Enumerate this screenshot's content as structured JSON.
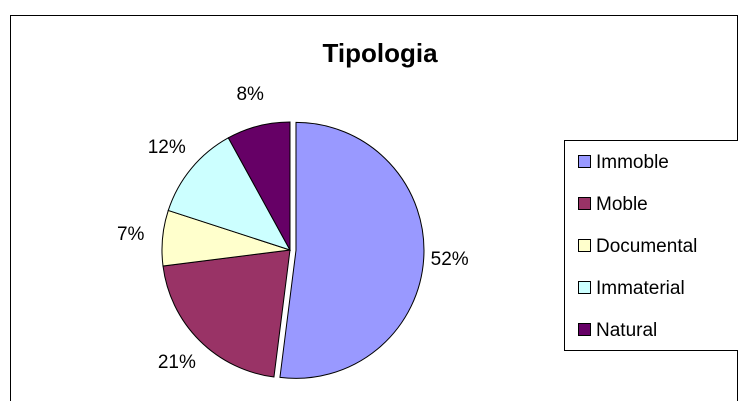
{
  "chart_data": {
    "type": "pie",
    "title": "Tipologia",
    "categories": [
      "Immoble",
      "Moble",
      "Documental",
      "Immaterial",
      "Natural"
    ],
    "values": [
      52,
      21,
      7,
      12,
      8
    ],
    "value_labels": [
      "52%",
      "21%",
      "7%",
      "12%",
      "8%"
    ],
    "colors": [
      "#9999ff",
      "#993366",
      "#ffffcc",
      "#ccffff",
      "#660066"
    ],
    "legend": "right"
  }
}
